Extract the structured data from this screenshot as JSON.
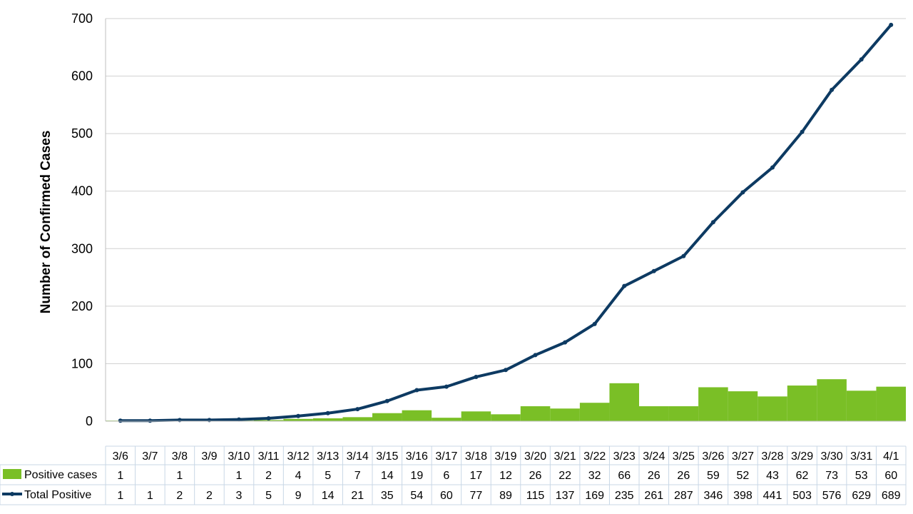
{
  "chart_data": {
    "type": "bar",
    "title": "",
    "xlabel": "",
    "ylabel": "Number of Confirmed Cases",
    "ylim": [
      0,
      700
    ],
    "yticks": [
      0,
      100,
      200,
      300,
      400,
      500,
      600,
      700
    ],
    "grid": true,
    "legend_position": "data-table-left",
    "categories": [
      "3/6",
      "3/7",
      "3/8",
      "3/9",
      "3/10",
      "3/11",
      "3/12",
      "3/13",
      "3/14",
      "3/15",
      "3/16",
      "3/17",
      "3/18",
      "3/19",
      "3/20",
      "3/21",
      "3/22",
      "3/23",
      "3/24",
      "3/25",
      "3/26",
      "3/27",
      "3/28",
      "3/29",
      "3/30",
      "3/31",
      "4/1"
    ],
    "series": [
      {
        "name": "Positive cases",
        "type": "bar",
        "color": "#7ABF26",
        "values": [
          1,
          null,
          1,
          null,
          1,
          2,
          4,
          5,
          7,
          14,
          19,
          6,
          17,
          12,
          26,
          22,
          32,
          66,
          26,
          26,
          59,
          52,
          43,
          62,
          73,
          53,
          60
        ]
      },
      {
        "name": "Total Positive",
        "type": "line",
        "color": "#0D3A62",
        "values": [
          1,
          1,
          2,
          2,
          3,
          5,
          9,
          14,
          21,
          35,
          54,
          60,
          77,
          89,
          115,
          137,
          169,
          235,
          261,
          287,
          346,
          398,
          441,
          503,
          576,
          629,
          689
        ]
      }
    ]
  }
}
